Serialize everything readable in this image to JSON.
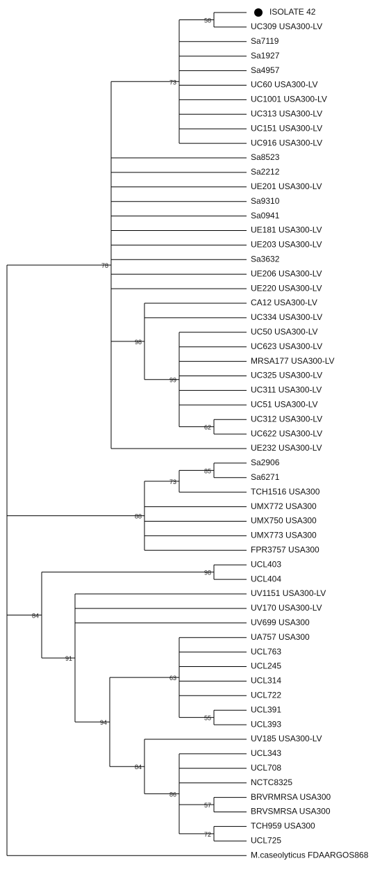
{
  "leaves": [
    "ISOLATE 42",
    "UC309 USA300-LV",
    "Sa7119",
    "Sa1927",
    "Sa4957",
    "UC60 USA300-LV",
    "UC1001 USA300-LV",
    "UC313 USA300-LV",
    "UC151 USA300-LV",
    "UC916 USA300-LV",
    "Sa8523",
    "Sa2212",
    "UE201 USA300-LV",
    "Sa9310",
    "Sa0941",
    "UE181 USA300-LV",
    "UE203 USA300-LV",
    "Sa3632",
    "UE206 USA300-LV",
    "UE220 USA300-LV",
    "CA12 USA300-LV",
    "UC334 USA300-LV",
    "UC50 USA300-LV",
    "UC623 USA300-LV",
    "MRSA177 USA300-LV",
    "UC325 USA300-LV",
    "UC311 USA300-LV",
    "UC51 USA300-LV",
    "UC312 USA300-LV",
    "UC622 USA300-LV",
    "UE232 USA300-LV",
    "Sa2906",
    "Sa6271",
    "TCH1516 USA300",
    "UMX772 USA300",
    "UMX750 USA300",
    "UMX773 USA300",
    "FPR3757 USA300",
    "UCL403",
    "UCL404",
    "UV1151 USA300-LV",
    "UV170 USA300-LV",
    "UV699 USA300",
    "UA757 USA300",
    "UCL763",
    "UCL245",
    "UCL314",
    "UCL722",
    "UCL391",
    "UCL393",
    "UV185 USA300-LV",
    "UCL343",
    "UCL708",
    "NCTC8325",
    "BRVRMRSA USA300",
    "BRVSMRSA USA300",
    "TCH959 USA300",
    "UCL725",
    "M.caseolyticus FDAARGOS868"
  ],
  "supports": [
    "78",
    "73",
    "58",
    "98",
    "99",
    "62",
    "88",
    "73",
    "85",
    "84",
    "98",
    "91",
    "94",
    "63",
    "55",
    "84",
    "86",
    "57",
    "72"
  ]
}
